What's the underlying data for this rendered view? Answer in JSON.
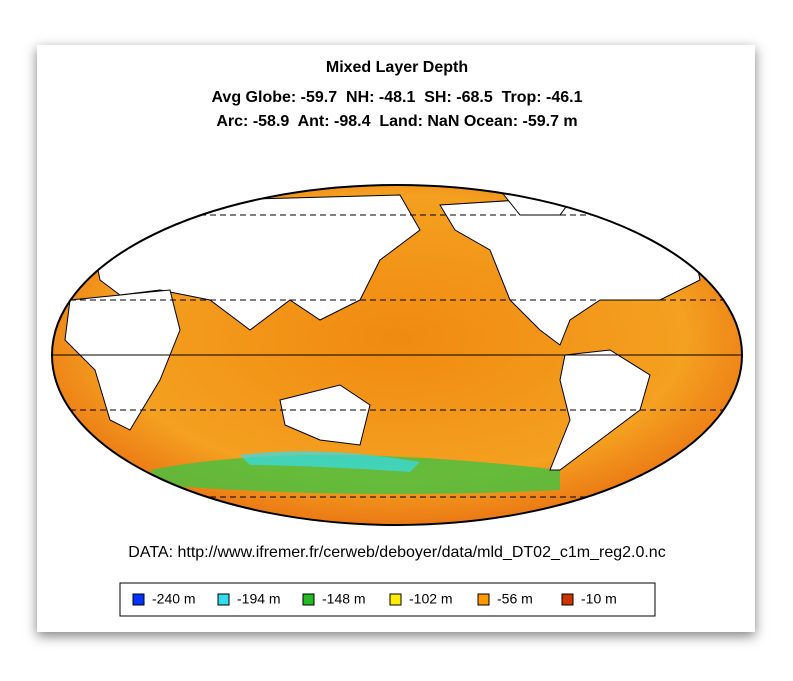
{
  "title": "Mixed Layer Depth",
  "stats": [
    "Avg Globe: -59.7  NH: -48.1  SH: -68.5  Trop: -46.1",
    "Arc: -58.9  Ant: -98.4  Land: NaN Ocean: -59.7 m"
  ],
  "source": "DATA: http://www.ifremer.fr/cerweb/deboyer/data/mld_DT02_c1m_reg2.0.nc",
  "legend": [
    {
      "label": "-240 m",
      "color": "#0033ff"
    },
    {
      "label": "-194 m",
      "color": "#33ddee"
    },
    {
      "label": "-148 m",
      "color": "#22bb22"
    },
    {
      "label": "-102 m",
      "color": "#ffee00"
    },
    {
      "label": "-56 m",
      "color": "#ff9900"
    },
    {
      "label": "-10 m",
      "color": "#cc3300"
    }
  ]
}
